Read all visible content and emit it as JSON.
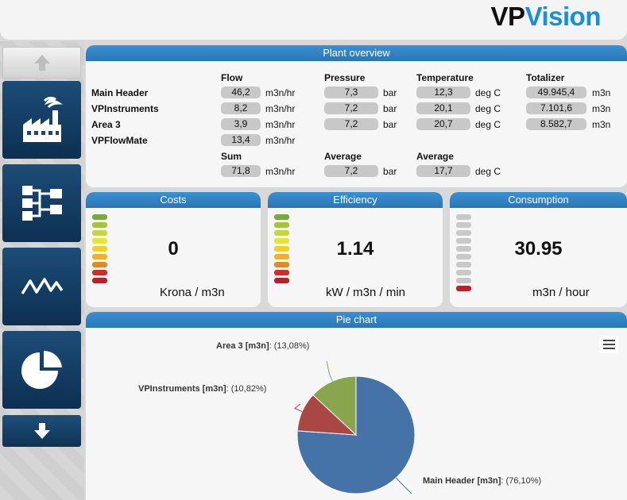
{
  "brand": {
    "part1": "VP",
    "part2": "Vision"
  },
  "sidebar": {
    "items": [
      {
        "icon": "arrow-up-icon"
      },
      {
        "icon": "factory-icon"
      },
      {
        "icon": "flow-diagram-icon"
      },
      {
        "icon": "trend-line-icon"
      },
      {
        "icon": "pie-chart-icon"
      },
      {
        "icon": "arrow-down-icon"
      }
    ]
  },
  "overview": {
    "title": "Plant overview",
    "headers": {
      "flow": "Flow",
      "pressure": "Pressure",
      "temperature": "Temperature",
      "totalizer": "Totalizer"
    },
    "units": {
      "flow": "m3n/hr",
      "pressure": "bar",
      "temperature": "deg C",
      "totalizer": "m3n"
    },
    "rows": [
      {
        "label": "Main Header",
        "flow": "46,2",
        "pressure": "7,3",
        "temperature": "12,3",
        "totalizer": "49.945,4"
      },
      {
        "label": "VPInstruments",
        "flow": "8,2",
        "pressure": "7,2",
        "temperature": "20,1",
        "totalizer": "7.101,6"
      },
      {
        "label": "Area 3",
        "flow": "3,9",
        "pressure": "7,2",
        "temperature": "20,7",
        "totalizer": "8.582,7"
      },
      {
        "label": "VPFlowMate",
        "flow": "13,4"
      }
    ],
    "summary": {
      "sum_label": "Sum",
      "sum_flow": "71,8",
      "avg_pressure_label": "Average",
      "avg_pressure": "7,2",
      "avg_temp_label": "Average",
      "avg_temp": "17,7"
    }
  },
  "gauges": [
    {
      "title": "Costs",
      "value": "0",
      "unit": "Krona / m3n",
      "bar_colors": [
        "#7aa83a",
        "#a4c43e",
        "#c3d645",
        "#e4e43a",
        "#f1cf2d",
        "#eeb12a",
        "#e08a2a",
        "#c9302c",
        "#b5222a"
      ]
    },
    {
      "title": "Efficiency",
      "value": "1.14",
      "unit": "kW / m3n / min",
      "bar_colors": [
        "#7aa83a",
        "#a4c43e",
        "#c3d645",
        "#e4e43a",
        "#f1cf2d",
        "#eeb12a",
        "#e08a2a",
        "#c9302c",
        "#b5222a"
      ]
    },
    {
      "title": "Consumption",
      "value": "30.95",
      "unit": "m3n / hour",
      "bar_colors": [
        "#c8c8c8",
        "#c8c8c8",
        "#c8c8c8",
        "#c8c8c8",
        "#c8c8c8",
        "#c8c8c8",
        "#c8c8c8",
        "#c8c8c8",
        "#c8c8c8",
        "#b5222a"
      ]
    }
  ],
  "pie": {
    "title": "Pie chart",
    "menu_icon": "hamburger-menu-icon"
  },
  "chart_data": {
    "type": "pie",
    "series": [
      {
        "name": "Main Header [m3n]",
        "value": 76.1,
        "label": ": (76,10%)",
        "color": "#4572a7"
      },
      {
        "name": "VPInstruments [m3n]",
        "value": 10.82,
        "label": ": (10,82%)",
        "color": "#aa4643"
      },
      {
        "name": "Area 3 [m3n]",
        "value": 13.08,
        "label": ": (13,08%)",
        "color": "#89a54e"
      }
    ]
  }
}
